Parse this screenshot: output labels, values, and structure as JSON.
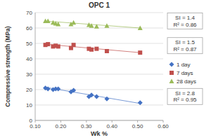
{
  "chart_data": {
    "type": "scatter",
    "title": "OPC 1",
    "x_label": "Wk %",
    "y_label": "Compressive strength (MPa)",
    "x": [
      0.14,
      0.15,
      0.17,
      0.18,
      0.19,
      0.24,
      0.25,
      0.31,
      0.32,
      0.34,
      0.38,
      0.51
    ],
    "series": [
      {
        "name": "1 day",
        "color": "#4472c4",
        "marker": "diamond",
        "values": [
          21,
          20.5,
          20,
          20.5,
          20.5,
          18.5,
          19.5,
          15.5,
          16.5,
          15.5,
          14,
          11.5
        ],
        "trend": {
          "x": [
            0.14,
            0.51
          ],
          "values": [
            21.5,
            11
          ]
        },
        "annotation": [
          "SI = 2.8",
          "R² = 0.95"
        ]
      },
      {
        "name": "7 days",
        "color": "#c0504d",
        "marker": "square",
        "values": [
          49,
          49.5,
          48,
          48.5,
          48,
          47,
          49,
          46.5,
          46,
          46.5,
          45,
          44
        ],
        "trend": {
          "x": [
            0.14,
            0.51
          ],
          "values": [
            49.5,
            44
          ]
        },
        "annotation": [
          "SI = 1.5",
          "R² = 0.87"
        ]
      },
      {
        "name": "28 days",
        "color": "#9bbb59",
        "marker": "triangle",
        "values": [
          64.5,
          64.5,
          63.5,
          63,
          62.5,
          62.5,
          63.5,
          62,
          61.5,
          61,
          61.5,
          60
        ],
        "trend": {
          "x": [
            0.14,
            0.51
          ],
          "values": [
            64.5,
            60
          ]
        },
        "annotation": [
          "SI = 1.4",
          "R² = 0.86"
        ]
      }
    ],
    "xlim": [
      0.1,
      0.6
    ],
    "xticks": [
      {
        "value": 0.1,
        "label": "0.10"
      },
      {
        "value": 0.2,
        "label": "0.20"
      },
      {
        "value": 0.3,
        "label": "0.30"
      },
      {
        "value": 0.4,
        "label": "0.40"
      },
      {
        "value": 0.5,
        "label": "0.50"
      },
      {
        "value": 0.6,
        "label": "0.60"
      }
    ],
    "ylim": [
      0,
      70
    ],
    "yticks": [
      0,
      10,
      20,
      30,
      40,
      50,
      60,
      70
    ],
    "grid": true,
    "legend": "right"
  }
}
